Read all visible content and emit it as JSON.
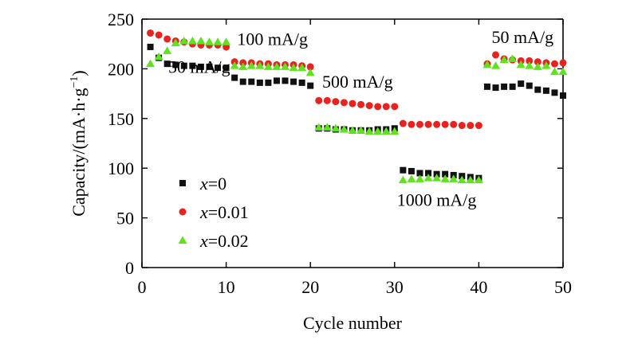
{
  "chart_data": {
    "type": "scatter",
    "title": "",
    "xlabel": "Cycle number",
    "ylabel_main": "Capacity/(mA·h·g",
    "ylabel_sup": "−1",
    "ylabel_end": ")",
    "xlim": [
      0,
      50
    ],
    "ylim": [
      0,
      250
    ],
    "xticks": [
      0,
      10,
      20,
      30,
      40,
      50
    ],
    "yticks": [
      0,
      50,
      100,
      150,
      200,
      250
    ],
    "grid": false,
    "legend_position": "lower-left",
    "x": [
      1,
      2,
      3,
      4,
      5,
      6,
      7,
      8,
      9,
      10,
      11,
      12,
      13,
      14,
      15,
      16,
      17,
      18,
      19,
      20,
      21,
      22,
      23,
      24,
      25,
      26,
      27,
      28,
      29,
      30,
      31,
      32,
      33,
      34,
      35,
      36,
      37,
      38,
      39,
      40,
      41,
      42,
      43,
      44,
      45,
      46,
      47,
      48,
      49,
      50
    ],
    "series": [
      {
        "name": "x=0",
        "label_italic": "x",
        "label_rest": "=0",
        "color": "#111111",
        "marker": "square",
        "values": [
          222,
          211,
          205,
          204,
          203,
          203,
          202,
          202,
          201,
          201,
          191,
          187,
          187,
          186,
          186,
          188,
          188,
          187,
          186,
          183,
          140,
          140,
          139,
          139,
          138,
          138,
          138,
          139,
          139,
          140,
          98,
          97,
          95,
          95,
          94,
          94,
          93,
          92,
          91,
          90,
          182,
          181,
          182,
          182,
          185,
          183,
          179,
          178,
          176,
          173
        ]
      },
      {
        "name": "x=0.01",
        "label_italic": "x",
        "label_rest": "=0.01",
        "color": "#e8231f",
        "marker": "circle",
        "values": [
          236,
          234,
          230,
          228,
          227,
          225,
          224,
          224,
          224,
          222,
          207,
          206,
          206,
          205,
          205,
          204,
          204,
          204,
          203,
          202,
          168,
          168,
          167,
          166,
          165,
          164,
          163,
          162,
          162,
          162,
          145,
          144,
          144,
          144,
          144,
          144,
          144,
          143,
          143,
          143,
          205,
          214,
          210,
          209,
          208,
          208,
          207,
          206,
          205,
          206
        ]
      },
      {
        "name": "x=0.02",
        "label_italic": "x",
        "label_rest": "=0.02",
        "color": "#5ee31c",
        "marker": "triangle",
        "values": [
          205,
          212,
          218,
          226,
          228,
          228,
          228,
          227,
          227,
          227,
          203,
          202,
          203,
          203,
          202,
          202,
          202,
          201,
          201,
          196,
          141,
          141,
          140,
          139,
          138,
          138,
          137,
          137,
          137,
          137,
          88,
          89,
          89,
          90,
          90,
          89,
          89,
          88,
          88,
          88,
          204,
          203,
          209,
          210,
          204,
          203,
          202,
          203,
          197,
          197
        ]
      }
    ],
    "annotations": [
      {
        "text": "50 mA/g",
        "x": 6.8,
        "y": 196
      },
      {
        "text": "100 mA/g",
        "x": 15.5,
        "y": 224
      },
      {
        "text": "500 mA/g",
        "x": 25.6,
        "y": 181
      },
      {
        "text": "1000 mA/g",
        "x": 35.0,
        "y": 62
      },
      {
        "text": "50 mA/g",
        "x": 45.2,
        "y": 226
      }
    ]
  }
}
